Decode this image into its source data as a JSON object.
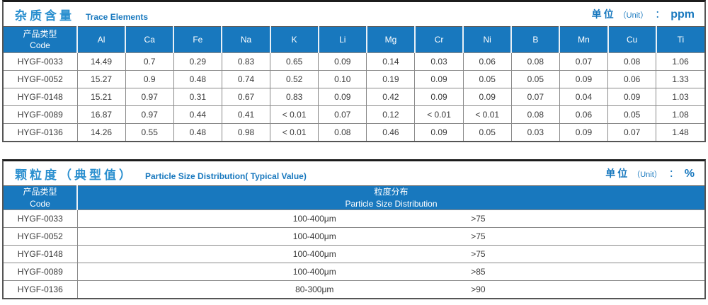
{
  "colors": {
    "header_bg": "#1878be",
    "title_blue": "#2a8fcf",
    "body_text": "#3a3a3a",
    "grid_line": "#898989",
    "frame": "#555555"
  },
  "tables": [
    {
      "title_cn": "杂质含量",
      "title_en": "Trace Elements",
      "unit_cn": "单位",
      "unit_en": "（Unit）",
      "unit_colon": "：",
      "unit_value": "ppm",
      "code_header_cn": "产品类型",
      "code_header_en": "Code",
      "columns": [
        "Al",
        "Ca",
        "Fe",
        "Na",
        "K",
        "Li",
        "Mg",
        "Cr",
        "Ni",
        "B",
        "Mn",
        "Cu",
        "Ti"
      ],
      "rows": [
        {
          "code": "HYGF-0033",
          "values": [
            "14.49",
            "0.7",
            "0.29",
            "0.83",
            "0.65",
            "0.09",
            "0.14",
            "0.03",
            "0.06",
            "0.08",
            "0.07",
            "0.08",
            "1.06"
          ]
        },
        {
          "code": "HYGF-0052",
          "values": [
            "15.27",
            "0.9",
            "0.48",
            "0.74",
            "0.52",
            "0.10",
            "0.19",
            "0.09",
            "0.05",
            "0.05",
            "0.09",
            "0.06",
            "1.33"
          ]
        },
        {
          "code": "HYGF-0148",
          "values": [
            "15.21",
            "0.97",
            "0.31",
            "0.67",
            "0.83",
            "0.09",
            "0.42",
            "0.09",
            "0.09",
            "0.07",
            "0.04",
            "0.09",
            "1.03"
          ]
        },
        {
          "code": "HYGF-0089",
          "values": [
            "16.87",
            "0.97",
            "0.44",
            "0.41",
            "< 0.01",
            "0.07",
            "0.12",
            "< 0.01",
            "< 0.01",
            "0.08",
            "0.06",
            "0.05",
            "1.08"
          ]
        },
        {
          "code": "HYGF-0136",
          "values": [
            "14.26",
            "0.55",
            "0.48",
            "0.98",
            "< 0.01",
            "0.08",
            "0.46",
            "0.09",
            "0.05",
            "0.03",
            "0.09",
            "0.07",
            "1.48"
          ]
        }
      ]
    },
    {
      "title_cn": "颗粒度（典型值）",
      "title_en": "Particle Size Distribution( Typical Value)",
      "unit_cn": "单位",
      "unit_en": "（Unit）",
      "unit_colon": "：",
      "unit_value": "%",
      "code_header_cn": "产品类型",
      "code_header_en": "Code",
      "dist_header_cn": "粒度分布",
      "dist_header_en": "Particle Size  Distribution",
      "rows": [
        {
          "code": "HYGF-0033",
          "range": "100-400μm",
          "value": ">75"
        },
        {
          "code": "HYGF-0052",
          "range": "100-400μm",
          "value": ">75"
        },
        {
          "code": "HYGF-0148",
          "range": "100-400μm",
          "value": ">75"
        },
        {
          "code": "HYGF-0089",
          "range": "100-400μm",
          "value": ">85"
        },
        {
          "code": "HYGF-0136",
          "range": "80-300μm",
          "value": ">90"
        }
      ]
    }
  ]
}
